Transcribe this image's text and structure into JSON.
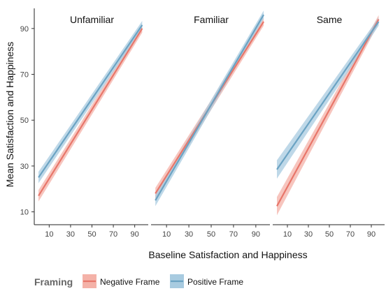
{
  "chart_data": {
    "type": "line",
    "xlabel": "Baseline Satisfaction and Happiness",
    "ylabel": "Mean Satisfaction and Happiness",
    "xlim": [
      -2,
      102
    ],
    "ylim": [
      5,
      100
    ],
    "x_ticks": [
      10,
      30,
      50,
      70,
      90
    ],
    "y_ticks": [
      10,
      30,
      50,
      70,
      90
    ],
    "grid": false,
    "legend": {
      "title": "Framing",
      "placement": "bottom-left",
      "entries": [
        {
          "label": "Negative Frame",
          "color": "#e8766a",
          "band_color": "#f4b2a8"
        },
        {
          "label": "Positive Frame",
          "color": "#6ba3c3",
          "band_color": "#a8cbe0"
        }
      ]
    },
    "panels": [
      {
        "title": "Unfamiliar",
        "series": [
          {
            "name": "Negative Frame",
            "x": [
              0,
              97
            ],
            "y": [
              17,
              90
            ],
            "ci_halfwidth": [
              2.5,
              1.8
            ]
          },
          {
            "name": "Positive Frame",
            "x": [
              0,
              97
            ],
            "y": [
              25,
              91.5
            ],
            "ci_halfwidth": [
              2.5,
              1.8
            ]
          }
        ]
      },
      {
        "title": "Familiar",
        "series": [
          {
            "name": "Negative Frame",
            "x": [
              0,
              97
            ],
            "y": [
              18,
              93
            ],
            "ci_halfwidth": [
              2.5,
              1.8
            ]
          },
          {
            "name": "Positive Frame",
            "x": [
              0,
              97
            ],
            "y": [
              15,
              96
            ],
            "ci_halfwidth": [
              2.5,
              1.8
            ]
          }
        ]
      },
      {
        "title": "Same",
        "series": [
          {
            "name": "Negative Frame",
            "x": [
              0,
              97
            ],
            "y": [
              12.5,
              94
            ],
            "ci_halfwidth": [
              4.0,
              1.8
            ]
          },
          {
            "name": "Positive Frame",
            "x": [
              0,
              97
            ],
            "y": [
              28.5,
              93
            ],
            "ci_halfwidth": [
              4.0,
              1.8
            ]
          }
        ]
      }
    ]
  }
}
